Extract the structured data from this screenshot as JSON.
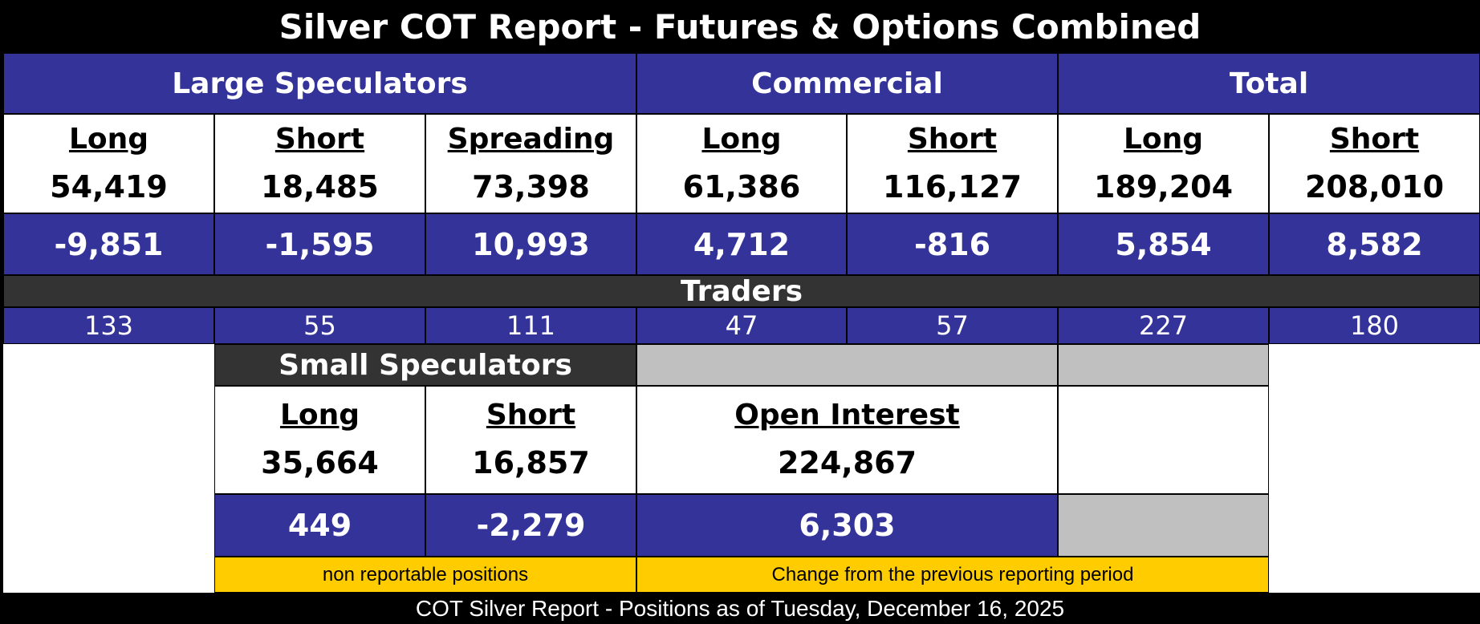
{
  "title": "Silver COT Report - Futures & Options Combined",
  "groups": [
    "Large Speculators",
    "Commercial",
    "Total"
  ],
  "columns": [
    {
      "label": "Long",
      "value": "54,419",
      "change": "-9,851",
      "traders": "133"
    },
    {
      "label": "Short",
      "value": "18,485",
      "change": "-1,595",
      "traders": "55"
    },
    {
      "label": "Spreading",
      "value": "73,398",
      "change": "10,993",
      "traders": "111"
    },
    {
      "label": "Long",
      "value": "61,386",
      "change": "4,712",
      "traders": "47"
    },
    {
      "label": "Short",
      "value": "116,127",
      "change": "-816",
      "traders": "57"
    },
    {
      "label": "Long",
      "value": "189,204",
      "change": "5,854",
      "traders": "227"
    },
    {
      "label": "Short",
      "value": "208,010",
      "change": "8,582",
      "traders": "180"
    }
  ],
  "traders_title": "Traders",
  "small_speculators": {
    "title": "Small Speculators",
    "columns": [
      {
        "label": "Long",
        "value": "35,664",
        "change": "449"
      },
      {
        "label": "Short",
        "value": "16,857",
        "change": "-2,279"
      }
    ]
  },
  "open_interest": {
    "label": "Open Interest",
    "value": "224,867",
    "change": "6,303"
  },
  "notes": [
    "non reportable positions",
    "Change from the previous reporting period"
  ],
  "footer": "COT Silver Report - Positions as of Tuesday, December 16, 2025"
}
